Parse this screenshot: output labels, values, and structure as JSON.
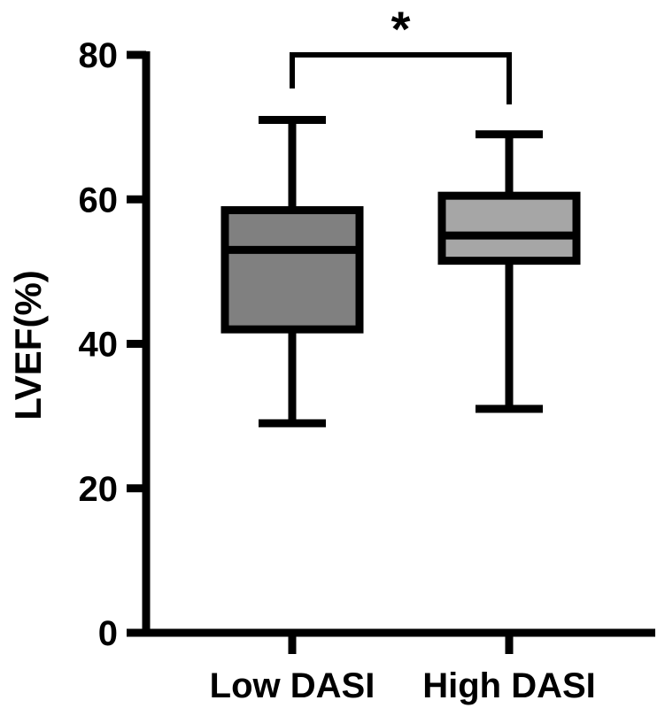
{
  "chart_data": {
    "type": "box",
    "ylabel": "LVEF(%)",
    "ylim": [
      0,
      80
    ],
    "yticks": [
      0,
      20,
      40,
      60,
      80
    ],
    "categories": [
      "Low DASI",
      "High DASI"
    ],
    "series": [
      {
        "category": "Low DASI",
        "min": 29,
        "q1": 42,
        "median": 53,
        "q3": 58.5,
        "max": 71,
        "color": "#808080"
      },
      {
        "category": "High DASI",
        "min": 31,
        "q1": 51.5,
        "median": 55,
        "q3": 60.5,
        "max": 69,
        "color": "#a6a6a6"
      }
    ],
    "annotations": [
      {
        "text": "*",
        "between": [
          "Low DASI",
          "High DASI"
        ]
      }
    ],
    "grid": false,
    "legend": "none"
  }
}
